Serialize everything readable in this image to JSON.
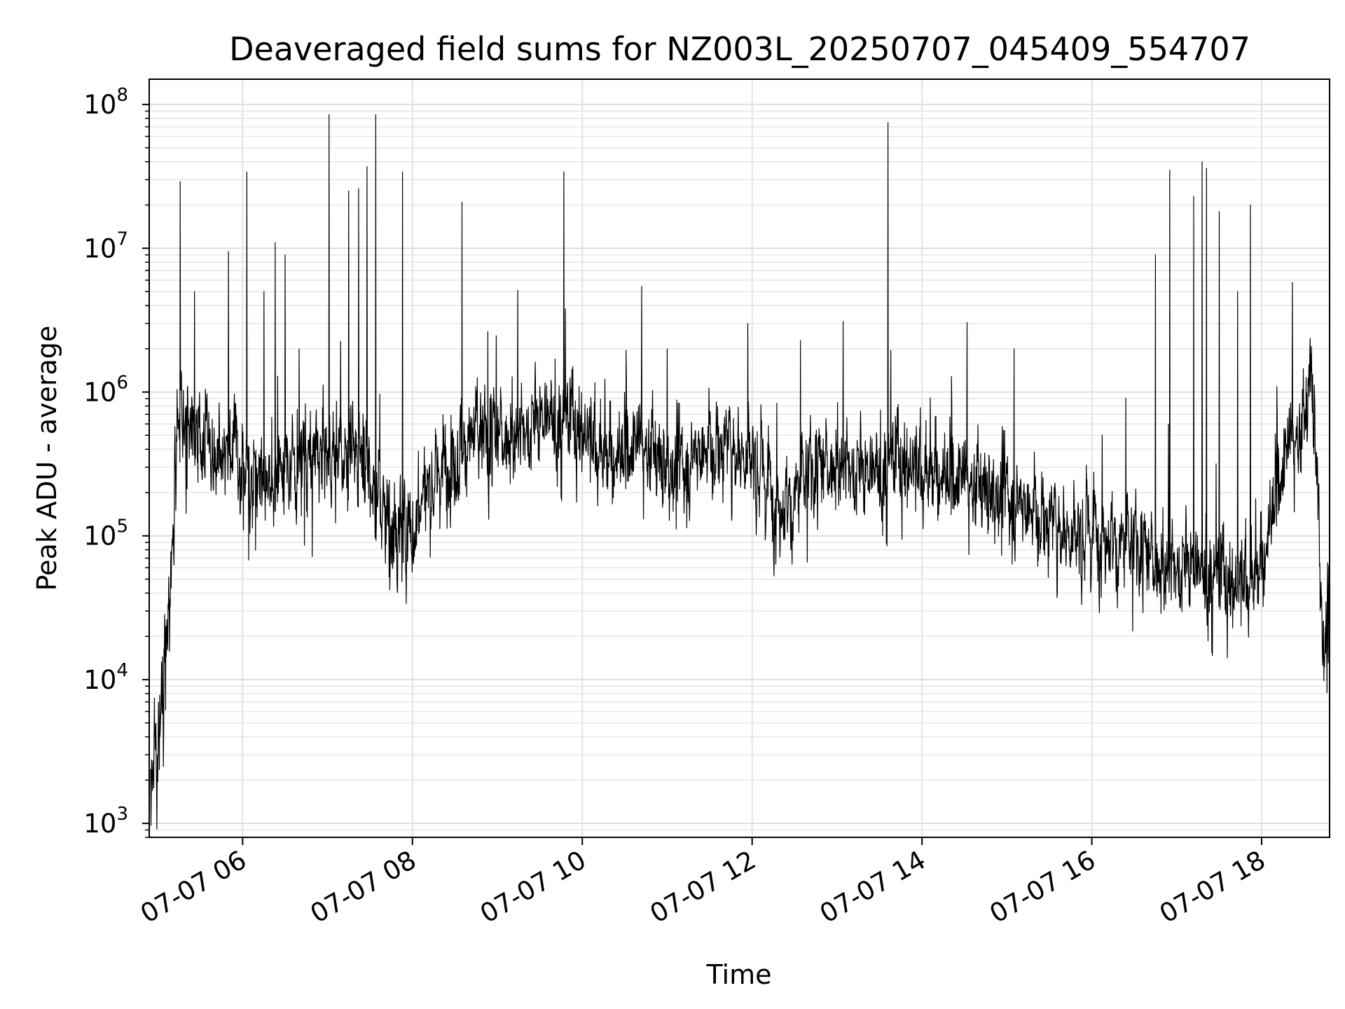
{
  "chart_data": {
    "type": "line",
    "title": "Deaveraged field sums for NZ003L_20250707_045409_554707",
    "xlabel": "Time",
    "ylabel": "Peak ADU - average",
    "xscale": "time",
    "yscale": "log",
    "xlim": [
      "2025-07-07 04:54",
      "2025-07-07 18:48"
    ],
    "ylim": [
      800,
      150000000
    ],
    "grid": true,
    "legend": "none",
    "x_ticks": [
      {
        "t": "2025-07-07 06:00",
        "label": "07-07 06"
      },
      {
        "t": "2025-07-07 08:00",
        "label": "07-07 08"
      },
      {
        "t": "2025-07-07 10:00",
        "label": "07-07 10"
      },
      {
        "t": "2025-07-07 12:00",
        "label": "07-07 12"
      },
      {
        "t": "2025-07-07 14:00",
        "label": "07-07 14"
      },
      {
        "t": "2025-07-07 16:00",
        "label": "07-07 16"
      },
      {
        "t": "2025-07-07 18:00",
        "label": "07-07 18"
      }
    ],
    "y_ticks": [
      {
        "value": 1000,
        "base": "10",
        "exp": "3"
      },
      {
        "value": 10000,
        "base": "10",
        "exp": "4"
      },
      {
        "value": 100000,
        "base": "10",
        "exp": "5"
      },
      {
        "value": 1000000,
        "base": "10",
        "exp": "6"
      },
      {
        "value": 10000000,
        "base": "10",
        "exp": "7"
      },
      {
        "value": 100000000,
        "base": "10",
        "exp": "8"
      }
    ],
    "line_color": "#000000",
    "series": [
      {
        "points": [
          [
            "2025-07-07 04:55",
            1400
          ],
          [
            "2025-07-07 04:58",
            3000
          ],
          [
            "2025-07-07 05:01",
            5000
          ],
          [
            "2025-07-07 05:04",
            9000
          ],
          [
            "2025-07-07 05:07",
            30000
          ],
          [
            "2025-07-07 05:10",
            60000
          ],
          [
            "2025-07-07 05:13",
            300000
          ],
          [
            "2025-07-07 05:16",
            800000
          ],
          [
            "2025-07-07 05:20",
            700000
          ],
          [
            "2025-07-07 05:25",
            400000
          ],
          [
            "2025-07-07 05:30",
            500000
          ],
          [
            "2025-07-07 05:40",
            350000
          ],
          [
            "2025-07-07 05:50",
            400000
          ],
          [
            "2025-07-07 06:00",
            300000
          ],
          [
            "2025-07-07 06:15",
            280000
          ],
          [
            "2025-07-07 06:30",
            300000
          ],
          [
            "2025-07-07 06:45",
            350000
          ],
          [
            "2025-07-07 07:00",
            350000
          ],
          [
            "2025-07-07 07:15",
            400000
          ],
          [
            "2025-07-07 07:30",
            300000
          ],
          [
            "2025-07-07 07:45",
            90000
          ],
          [
            "2025-07-07 08:00",
            120000
          ],
          [
            "2025-07-07 08:10",
            200000
          ],
          [
            "2025-07-07 08:20",
            300000
          ],
          [
            "2025-07-07 08:40",
            450000
          ],
          [
            "2025-07-07 09:00",
            500000
          ],
          [
            "2025-07-07 09:20",
            550000
          ],
          [
            "2025-07-07 09:40",
            650000
          ],
          [
            "2025-07-07 10:00",
            550000
          ],
          [
            "2025-07-07 10:20",
            350000
          ],
          [
            "2025-07-07 10:40",
            400000
          ],
          [
            "2025-07-07 11:00",
            300000
          ],
          [
            "2025-07-07 11:20",
            400000
          ],
          [
            "2025-07-07 11:40",
            450000
          ],
          [
            "2025-07-07 12:00",
            400000
          ],
          [
            "2025-07-07 12:20",
            150000
          ],
          [
            "2025-07-07 12:40",
            250000
          ],
          [
            "2025-07-07 13:00",
            350000
          ],
          [
            "2025-07-07 13:20",
            250000
          ],
          [
            "2025-07-07 13:40",
            320000
          ],
          [
            "2025-07-07 14:00",
            300000
          ],
          [
            "2025-07-07 14:20",
            250000
          ],
          [
            "2025-07-07 14:40",
            200000
          ],
          [
            "2025-07-07 15:00",
            220000
          ],
          [
            "2025-07-07 15:20",
            150000
          ],
          [
            "2025-07-07 15:40",
            120000
          ],
          [
            "2025-07-07 16:00",
            110000
          ],
          [
            "2025-07-07 16:20",
            90000
          ],
          [
            "2025-07-07 16:40",
            70000
          ],
          [
            "2025-07-07 17:00",
            60000
          ],
          [
            "2025-07-07 17:20",
            55000
          ],
          [
            "2025-07-07 17:40",
            45000
          ],
          [
            "2025-07-07 18:00",
            60000
          ],
          [
            "2025-07-07 18:10",
            200000
          ],
          [
            "2025-07-07 18:20",
            400000
          ],
          [
            "2025-07-07 18:30",
            500000
          ],
          [
            "2025-07-07 18:35",
            1500000
          ],
          [
            "2025-07-07 18:40",
            200000
          ],
          [
            "2025-07-07 18:43",
            20000
          ],
          [
            "2025-07-07 18:47",
            25000
          ]
        ]
      }
    ],
    "spikes": [
      [
        "2025-07-07 05:16",
        29000000
      ],
      [
        "2025-07-07 05:26",
        5000000
      ],
      [
        "2025-07-07 05:50",
        9500000
      ],
      [
        "2025-07-07 06:03",
        34000000
      ],
      [
        "2025-07-07 06:15",
        5000000
      ],
      [
        "2025-07-07 06:23",
        11000000
      ],
      [
        "2025-07-07 06:30",
        9000000
      ],
      [
        "2025-07-07 06:40",
        2000000
      ],
      [
        "2025-07-07 07:01",
        85000000
      ],
      [
        "2025-07-07 07:15",
        25000000
      ],
      [
        "2025-07-07 07:22",
        26000000
      ],
      [
        "2025-07-07 07:28",
        37000000
      ],
      [
        "2025-07-07 07:34",
        85000000
      ],
      [
        "2025-07-07 07:53",
        34000000
      ],
      [
        "2025-07-07 08:35",
        21000000
      ],
      [
        "2025-07-07 09:47",
        34000000
      ],
      [
        "2025-07-07 11:00",
        2000000
      ],
      [
        "2025-07-07 11:57",
        3000000
      ],
      [
        "2025-07-07 13:36",
        75000000
      ],
      [
        "2025-07-07 15:05",
        2000000
      ],
      [
        "2025-07-07 16:45",
        9000000
      ],
      [
        "2025-07-07 16:55",
        35000000
      ],
      [
        "2025-07-07 17:12",
        23000000
      ],
      [
        "2025-07-07 17:18",
        40000000
      ],
      [
        "2025-07-07 17:21",
        36000000
      ],
      [
        "2025-07-07 17:30",
        18000000
      ],
      [
        "2025-07-07 17:43",
        5000000
      ],
      [
        "2025-07-07 17:52",
        20000000
      ]
    ]
  }
}
